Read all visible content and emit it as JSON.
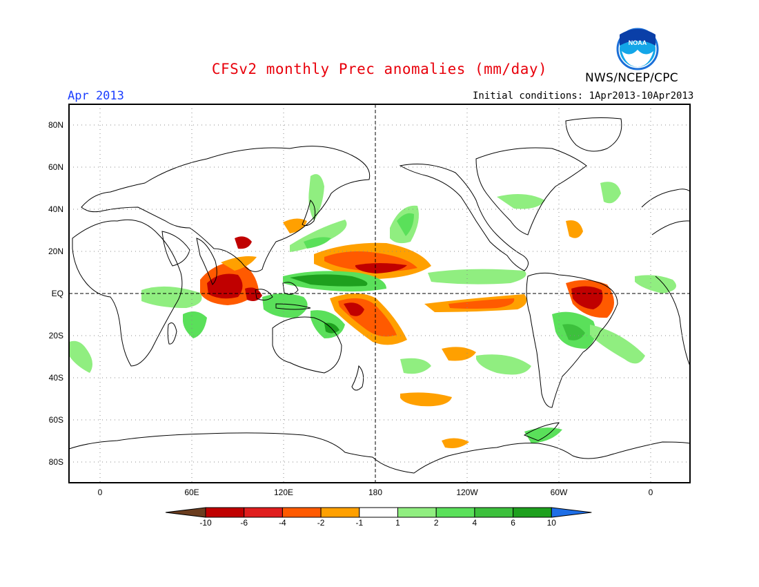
{
  "header": {
    "title": "CFSv2 monthly Prec anomalies (mm/day)",
    "organization": "NWS/NCEP/CPC",
    "logo_text": "NOAA",
    "month": "Apr 2013",
    "initial_conditions": "Initial conditions: 1Apr2013-10Apr2013"
  },
  "map": {
    "lat_labels": [
      "80N",
      "60N",
      "40N",
      "20N",
      "EQ",
      "20S",
      "40S",
      "60S",
      "80S"
    ],
    "lon_labels": [
      "0",
      "60E",
      "120E",
      "180",
      "120W",
      "60W",
      "0"
    ]
  },
  "colorbar": {
    "labels": [
      "-10",
      "-6",
      "-4",
      "-2",
      "-1",
      "1",
      "2",
      "4",
      "6",
      "10"
    ],
    "colors": [
      "#6b3d1f",
      "#c00000",
      "#e01e1e",
      "#ff5a00",
      "#ffa000",
      "#ffffff",
      "#90ee80",
      "#5ae05a",
      "#3cc03c",
      "#1ea01e",
      "#1e6ee6"
    ]
  }
}
